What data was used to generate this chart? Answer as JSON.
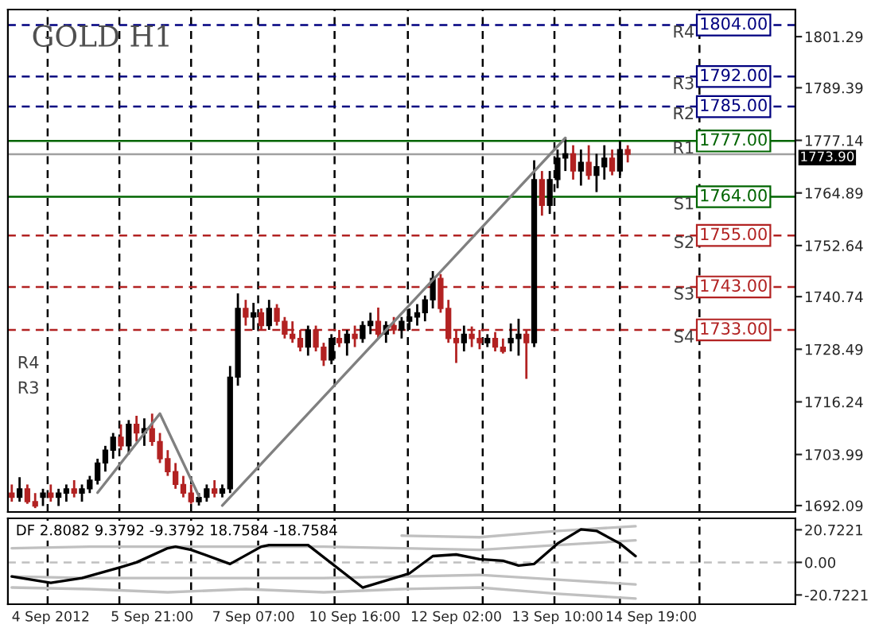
{
  "chart_data": [
    {
      "type": "candlestick",
      "title": "GOLD H1",
      "ylim": [
        1690.6,
        1807.6
      ],
      "yticks": [
        1692.09,
        1703.99,
        1716.24,
        1728.49,
        1740.74,
        1752.64,
        1764.89,
        1777.14,
        1789.39,
        1801.29
      ],
      "tick_labels": "y",
      "categories": [
        null,
        null,
        null,
        null,
        null,
        null,
        null,
        null,
        null,
        null,
        null,
        null,
        null,
        null,
        null,
        null,
        null,
        null,
        null,
        null,
        null,
        null,
        null,
        null,
        null,
        null,
        null,
        null,
        null,
        null,
        null,
        null,
        null,
        null,
        null,
        null,
        null,
        null,
        null,
        null,
        null,
        null,
        null,
        null,
        null,
        null,
        null,
        null,
        null,
        null,
        null,
        null,
        null,
        null,
        null,
        null,
        null,
        null,
        null,
        null,
        null,
        null,
        null,
        null,
        null,
        null,
        null,
        null,
        null,
        null,
        null,
        null,
        null,
        null,
        null,
        null,
        null,
        null,
        null,
        null,
        null,
        null,
        null,
        null,
        null,
        null,
        null,
        null,
        null,
        null,
        null,
        null,
        null,
        null,
        null,
        null,
        null,
        null,
        null,
        null,
        null
      ],
      "series": [
        {
          "type": "candlestick",
          "ohlc": [
            [
              1695,
              1697,
              1693,
              1694
            ],
            [
              1694,
              1698.7,
              1693,
              1696
            ],
            [
              1696,
              1697,
              1692.5,
              1693
            ],
            [
              1693,
              1695,
              1691.5,
              1692
            ],
            [
              1694,
              1696,
              1692,
              1695
            ],
            [
              1695,
              1697,
              1693,
              1694
            ],
            [
              1694,
              1696,
              1692,
              1695
            ],
            [
              1695,
              1697,
              1693,
              1696
            ],
            [
              1696,
              1698,
              1694,
              1695
            ],
            [
              1695,
              1697,
              1693,
              1696
            ],
            [
              1696,
              1699,
              1695,
              1698
            ],
            [
              1698,
              1703,
              1697,
              1702
            ],
            [
              1702,
              1706,
              1700,
              1705
            ],
            [
              1705,
              1709,
              1703,
              1708
            ],
            [
              1708,
              1711,
              1705,
              1706
            ],
            [
              1706,
              1712,
              1704,
              1711
            ],
            [
              1711,
              1713,
              1707,
              1709
            ],
            [
              1709,
              1712.4,
              1706,
              1710
            ],
            [
              1710,
              1713.5,
              1706,
              1707
            ],
            [
              1707,
              1709,
              1702,
              1703
            ],
            [
              1703,
              1705,
              1699,
              1700
            ],
            [
              1700,
              1702,
              1696,
              1697
            ],
            [
              1697,
              1699,
              1694,
              1695
            ],
            [
              1695,
              1697,
              1692.5,
              1693
            ],
            [
              1693,
              1695,
              1692.1,
              1694
            ],
            [
              1694,
              1697,
              1693,
              1696
            ],
            [
              1696,
              1698,
              1694,
              1695
            ],
            [
              1695,
              1697,
              1694,
              1696
            ],
            [
              1696,
              1724.6,
              1695,
              1722
            ],
            [
              1722,
              1741.5,
              1720,
              1738
            ],
            [
              1738,
              1740,
              1734,
              1736
            ],
            [
              1736,
              1739.3,
              1733,
              1737
            ],
            [
              1737,
              1738,
              1733,
              1734
            ],
            [
              1734,
              1740,
              1733,
              1738
            ],
            [
              1738,
              1739,
              1734,
              1735
            ],
            [
              1735,
              1736,
              1731,
              1732
            ],
            [
              1732,
              1735,
              1730,
              1731
            ],
            [
              1731,
              1733,
              1728,
              1729
            ],
            [
              1729,
              1734,
              1727,
              1733
            ],
            [
              1733,
              1734,
              1728,
              1729
            ],
            [
              1729,
              1730,
              1724.6,
              1726
            ],
            [
              1726,
              1732,
              1725,
              1731
            ],
            [
              1731,
              1733,
              1729,
              1730
            ],
            [
              1730,
              1733,
              1727,
              1732
            ],
            [
              1732,
              1734,
              1729,
              1731
            ],
            [
              1731,
              1735,
              1730,
              1734
            ],
            [
              1734,
              1737,
              1732,
              1735
            ],
            [
              1735,
              1738.2,
              1731,
              1732
            ],
            [
              1732,
              1735,
              1730,
              1734
            ],
            [
              1734,
              1736,
              1732,
              1733
            ],
            [
              1733,
              1736,
              1731,
              1735
            ],
            [
              1735,
              1738,
              1733,
              1736
            ],
            [
              1736,
              1739,
              1734,
              1737
            ],
            [
              1737,
              1741,
              1735,
              1740
            ],
            [
              1740,
              1746.7,
              1738,
              1745
            ],
            [
              1745,
              1746,
              1737,
              1738
            ],
            [
              1738,
              1740,
              1730,
              1731
            ],
            [
              1731,
              1733,
              1725.3,
              1730
            ],
            [
              1730,
              1734,
              1728,
              1732
            ],
            [
              1732,
              1733.8,
              1729,
              1731
            ],
            [
              1731,
              1733,
              1728.5,
              1730
            ],
            [
              1730,
              1732,
              1729,
              1731
            ],
            [
              1731,
              1732.5,
              1728,
              1729
            ],
            [
              1729,
              1731,
              1727.5,
              1728
            ],
            [
              1730,
              1734.5,
              1728,
              1731
            ],
            [
              1731,
              1735.6,
              1727,
              1732
            ],
            [
              1732,
              1733,
              1721.6,
              1730
            ],
            [
              1730,
              1772.5,
              1729,
              1768
            ],
            [
              1768,
              1770,
              1759.6,
              1762
            ],
            [
              1762,
              1770,
              1760,
              1768
            ],
            [
              1768,
              1775,
              1766,
              1773
            ],
            [
              1773,
              1777.7,
              1770,
              1774
            ],
            [
              1774,
              1776,
              1768,
              1770
            ],
            [
              1770,
              1775,
              1766.6,
              1772
            ],
            [
              1772,
              1776,
              1768,
              1769
            ],
            [
              1769,
              1774,
              1765.1,
              1771
            ],
            [
              1771,
              1776,
              1768,
              1773
            ],
            [
              1773,
              1775,
              1769,
              1770
            ],
            [
              1770,
              1777,
              1769,
              1775
            ],
            [
              1775,
              1776,
              1772,
              1773.9
            ],
            null,
            null,
            null,
            null,
            null,
            null,
            null,
            null,
            null,
            null,
            null,
            null,
            null,
            null,
            null,
            null,
            null,
            null,
            null,
            null,
            null
          ],
          "colors": [
            "#b22222",
            "#000000",
            "#b22222",
            "#b22222",
            "#000000",
            "#b22222",
            "#000000",
            "#000000",
            "#b22222",
            "#000000",
            "#000000",
            "#000000",
            "#000000",
            "#000000",
            "#b22222",
            "#000000",
            "#b22222",
            "#000000",
            "#b22222",
            "#b22222",
            "#b22222",
            "#b22222",
            "#b22222",
            "#b22222",
            "#000000",
            "#000000",
            "#b22222",
            "#000000",
            "#000000",
            "#000000",
            "#b22222",
            "#000000",
            "#b22222",
            "#000000",
            "#b22222",
            "#b22222",
            "#b22222",
            "#b22222",
            "#000000",
            "#b22222",
            "#b22222",
            "#000000",
            "#b22222",
            "#000000",
            "#b22222",
            "#000000",
            "#000000",
            "#b22222",
            "#000000",
            "#b22222",
            "#000000",
            "#000000",
            "#000000",
            "#000000",
            "#000000",
            "#b22222",
            "#b22222",
            "#b22222",
            "#000000",
            "#b22222",
            "#b22222",
            "#000000",
            "#b22222",
            "#b22222",
            "#000000",
            "#000000",
            "#b22222",
            "#000000",
            "#b22222",
            "#000000",
            "#000000",
            "#000000",
            "#b22222",
            "#000000",
            "#b22222",
            "#000000",
            "#000000",
            "#b22222",
            "#000000",
            "#b22222",
            null,
            null,
            null,
            null,
            null,
            null,
            null,
            null,
            null,
            null,
            null,
            null,
            null,
            null,
            null,
            null,
            null,
            null,
            null,
            null,
            null
          ]
        },
        {
          "type": "line",
          "color": "#808080",
          "values": [
            null,
            null,
            null,
            null,
            null,
            null,
            null,
            null,
            null,
            null,
            null,
            null,
            null,
            null,
            null,
            null,
            null,
            null,
            null,
            null,
            null,
            null,
            null,
            null,
            null,
            null,
            null,
            1692.1,
            null,
            null,
            null,
            null,
            null,
            null,
            null,
            null,
            null,
            null,
            null,
            null,
            null,
            null,
            null,
            null,
            null,
            null,
            null,
            null,
            null,
            null,
            null,
            null,
            null,
            null,
            null,
            null,
            null,
            null,
            null,
            null,
            null,
            null,
            null,
            null,
            null,
            null,
            null,
            null,
            null,
            null,
            null,
            1777.7,
            null,
            null,
            null,
            null,
            null,
            null,
            null,
            null,
            null,
            null,
            null,
            null,
            null,
            null,
            null,
            null,
            null,
            null,
            null,
            null,
            null,
            null,
            null,
            null,
            null,
            null,
            null,
            null,
            null
          ]
        },
        {
          "type": "line",
          "color": "#808080",
          "values": [
            null,
            null,
            null,
            null,
            null,
            null,
            null,
            null,
            null,
            null,
            null,
            1695.1,
            null,
            null,
            null,
            null,
            null,
            null,
            null,
            1713.5,
            null,
            null,
            null,
            null,
            1694.3,
            null,
            null,
            null,
            null,
            null,
            null,
            null,
            null,
            null,
            null,
            null,
            null,
            null,
            null,
            null,
            null,
            null,
            null,
            null,
            null,
            null,
            null,
            null,
            null,
            null,
            null,
            null,
            null,
            null,
            null,
            null,
            null,
            null,
            null,
            null,
            null,
            null,
            null,
            null,
            null,
            null,
            null,
            null,
            null,
            null,
            null,
            null,
            null,
            null,
            null,
            null,
            null,
            null,
            null,
            null,
            null,
            null,
            null,
            null,
            null,
            null,
            null,
            null,
            null,
            null,
            null,
            null,
            null,
            null,
            null,
            null,
            null,
            null,
            null,
            null,
            null
          ]
        }
      ],
      "ref_lines": [
        {
          "axis": "y",
          "value": 1804.0,
          "label": "R4",
          "color": "#000080",
          "line_style": "dashed"
        },
        {
          "axis": "y",
          "value": 1792.0,
          "label": "R3",
          "color": "#000080",
          "line_style": "dashed"
        },
        {
          "axis": "y",
          "value": 1785.0,
          "label": "R2",
          "color": "#000080",
          "line_style": "dashed"
        },
        {
          "axis": "y",
          "value": 1777.0,
          "label": "R1",
          "color": "#006400",
          "line_style": "solid"
        },
        {
          "axis": "y",
          "value": 1764.0,
          "label": "S1",
          "color": "#006400",
          "line_style": "solid"
        },
        {
          "axis": "y",
          "value": 1755.0,
          "label": "S2",
          "color": "#b22222",
          "line_style": "dashed"
        },
        {
          "axis": "y",
          "value": 1743.0,
          "label": "S3",
          "color": "#b22222",
          "line_style": "dashed"
        },
        {
          "axis": "y",
          "value": 1733.0,
          "label": "S4",
          "color": "#b22222",
          "line_style": "dashed"
        },
        {
          "axis": "y",
          "value": 1773.9,
          "label": "1773.90",
          "color": "#a0a0a0",
          "line_style": "solid"
        }
      ],
      "annotations": [
        {
          "text": "1804.00",
          "y": 1804.0
        },
        {
          "text": "1792.00",
          "y": 1792.0
        },
        {
          "text": "1785.00",
          "y": 1785.0
        },
        {
          "text": "1777.00",
          "y": 1777.0
        },
        {
          "text": "1764.00",
          "y": 1764.0
        },
        {
          "text": "1755.00",
          "y": 1755.0
        },
        {
          "text": "1743.00",
          "y": 1743.0
        },
        {
          "text": "1733.00",
          "y": 1733.0
        },
        "R4",
        "R3"
      ]
    },
    {
      "type": "line",
      "title": "DF 2.8082 9.3792 -9.3792 18.7584 -18.7584",
      "ylim": [
        -26.6,
        28
      ],
      "yticks": [
        {
          "value": -20.7221,
          "label": "-20.7221"
        },
        {
          "value": 0,
          "label": "0.00"
        },
        {
          "value": 20.7221,
          "label": "20.7221"
        }
      ],
      "categories": [
        null,
        null,
        null,
        null,
        null,
        "4 Sep 2012",
        null,
        null,
        null,
        null,
        null,
        null,
        null,
        null,
        null,
        null,
        null,
        null,
        "5 Sep 21:00",
        null,
        null,
        null,
        null,
        null,
        null,
        null,
        null,
        null,
        null,
        null,
        null,
        "7 Sep 07:00",
        null,
        null,
        null,
        null,
        null,
        null,
        null,
        null,
        null,
        null,
        null,
        null,
        "10 Sep 16:00",
        null,
        null,
        null,
        null,
        null,
        null,
        null,
        null,
        null,
        null,
        null,
        null,
        "12 Sep 02:00",
        null,
        null,
        null,
        null,
        null,
        null,
        null,
        null,
        null,
        null,
        null,
        null,
        "13 Sep 10:00",
        null,
        null,
        null,
        null,
        null,
        null,
        null,
        null,
        null,
        null,
        null,
        "14 Sep 19:00",
        null,
        null,
        null,
        null,
        null,
        null,
        null,
        null,
        null,
        null,
        null,
        null,
        null,
        null,
        null,
        null,
        null,
        null
      ],
      "series": [
        {
          "color": "#c0c0c0",
          "values": [
            null,
            null,
            null,
            null,
            null,
            null,
            null,
            null,
            null,
            null,
            null,
            null,
            null,
            null,
            null,
            null,
            null,
            null,
            null,
            null,
            null,
            null,
            null,
            null,
            null,
            null,
            null,
            null,
            null,
            null,
            null,
            null,
            null,
            null,
            null,
            null,
            null,
            null,
            null,
            null,
            null,
            null,
            null,
            null,
            null,
            null,
            null,
            null,
            null,
            null,
            17,
            null,
            null,
            null,
            null,
            null,
            null,
            null,
            null,
            null,
            16,
            null,
            null,
            null,
            null,
            null,
            null,
            null,
            null,
            null,
            20,
            null,
            null,
            null,
            null,
            null,
            null,
            null,
            null,
            null,
            23,
            null,
            null,
            null,
            null,
            null,
            null,
            null,
            null,
            null,
            null,
            null,
            null,
            null,
            null,
            null,
            null,
            null,
            null,
            null,
            null
          ]
        },
        {
          "color": "#c0c0c0",
          "values": [
            9,
            null,
            null,
            null,
            null,
            null,
            null,
            null,
            null,
            null,
            10,
            null,
            null,
            null,
            null,
            null,
            null,
            null,
            null,
            null,
            10,
            null,
            null,
            null,
            null,
            null,
            null,
            null,
            null,
            null,
            10,
            null,
            null,
            null,
            null,
            null,
            null,
            null,
            null,
            null,
            10,
            null,
            null,
            null,
            null,
            null,
            null,
            null,
            null,
            null,
            9,
            null,
            null,
            null,
            null,
            null,
            null,
            null,
            null,
            null,
            8,
            null,
            null,
            null,
            null,
            null,
            null,
            null,
            null,
            null,
            11,
            null,
            null,
            null,
            null,
            null,
            null,
            null,
            null,
            null,
            14,
            null,
            null,
            null,
            null,
            null,
            null,
            null,
            null,
            null,
            null,
            null,
            null,
            null,
            null,
            null,
            null,
            null,
            null,
            null,
            null
          ]
        },
        {
          "color": "#c0c0c0",
          "values": [
            -9,
            null,
            null,
            null,
            null,
            null,
            null,
            null,
            null,
            null,
            -10,
            null,
            null,
            null,
            null,
            null,
            null,
            null,
            null,
            null,
            -10,
            null,
            null,
            null,
            null,
            null,
            null,
            null,
            null,
            null,
            -10,
            null,
            null,
            null,
            null,
            null,
            null,
            null,
            null,
            null,
            -10,
            null,
            null,
            null,
            null,
            null,
            null,
            null,
            null,
            null,
            -9,
            null,
            null,
            null,
            null,
            null,
            null,
            null,
            null,
            null,
            -8,
            null,
            null,
            null,
            null,
            null,
            null,
            null,
            null,
            null,
            -11,
            null,
            null,
            null,
            null,
            null,
            null,
            null,
            null,
            null,
            -14,
            null,
            null,
            null,
            null,
            null,
            null,
            null,
            null,
            null,
            null,
            null,
            null,
            null,
            null,
            null,
            null,
            null,
            null,
            null,
            null
          ]
        },
        {
          "color": "#c0c0c0",
          "values": [
            -16,
            null,
            null,
            null,
            null,
            null,
            null,
            null,
            null,
            null,
            -17,
            null,
            null,
            null,
            null,
            null,
            null,
            null,
            null,
            null,
            -19,
            null,
            null,
            null,
            null,
            null,
            null,
            null,
            null,
            null,
            -17,
            null,
            null,
            null,
            null,
            null,
            null,
            null,
            null,
            null,
            -19,
            null,
            null,
            null,
            null,
            null,
            null,
            null,
            null,
            null,
            -17,
            null,
            null,
            null,
            null,
            null,
            null,
            null,
            null,
            null,
            -16,
            null,
            null,
            null,
            null,
            null,
            null,
            null,
            null,
            null,
            -20,
            null,
            null,
            null,
            null,
            null,
            null,
            null,
            null,
            null,
            -23,
            null,
            null,
            null,
            null,
            null,
            null,
            null,
            null,
            null,
            null,
            null,
            null,
            null,
            null,
            null,
            null,
            null,
            null,
            null,
            null
          ]
        },
        {
          "color": "#000000",
          "values": [
            -9,
            null,
            null,
            null,
            null,
            -13,
            null,
            null,
            null,
            -10,
            null,
            null,
            null,
            null,
            -3,
            null,
            0,
            null,
            null,
            null,
            9,
            10,
            null,
            8,
            null,
            null,
            null,
            null,
            -1,
            null,
            null,
            null,
            10,
            11,
            null,
            null,
            null,
            null,
            11,
            null,
            null,
            null,
            null,
            null,
            null,
            -16,
            null,
            null,
            null,
            null,
            null,
            -7,
            null,
            null,
            4,
            null,
            null,
            5,
            null,
            null,
            2,
            null,
            null,
            1,
            null,
            -2,
            null,
            -1,
            null,
            null,
            12,
            null,
            null,
            21,
            null,
            20,
            null,
            null,
            12,
            null,
            4,
            null,
            null,
            null,
            null,
            null,
            null,
            null,
            null,
            null,
            null,
            null,
            null,
            null,
            null,
            null,
            null,
            null,
            null,
            null,
            null
          ]
        }
      ],
      "ref_lines": [
        {
          "axis": "y",
          "value": 0,
          "color": "#c0c0c0",
          "line_style": "dashed"
        }
      ]
    }
  ]
}
